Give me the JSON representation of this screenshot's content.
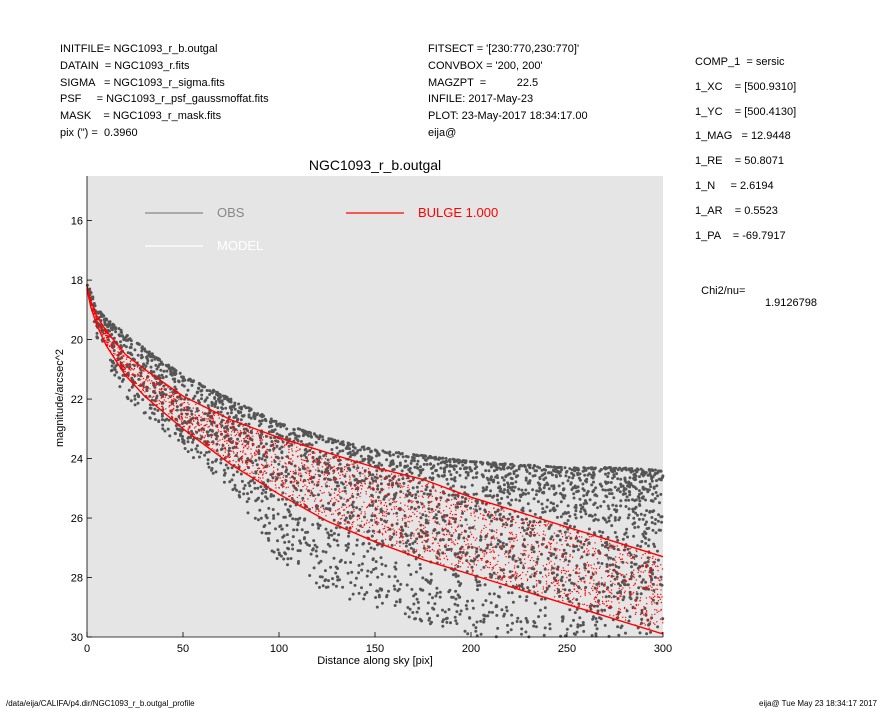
{
  "header_left": [
    "INITFILE= NGC1093_r_b.outgal",
    "DATAIN  = NGC1093_r.fits",
    "SIGMA   = NGC1093_r_sigma.fits",
    "PSF     = NGC1093_r_psf_gaussmoffat.fits",
    "MASK    = NGC1093_r_mask.fits",
    "pix (\") =  0.3960"
  ],
  "header_mid": [
    "FITSECT = '[230:770,230:770]'",
    "CONVBOX = '200, 200'",
    "MAGZPT  =          22.5",
    "INFILE: 2017-May-23",
    "PLOT: 23-May-2017 18:34:17.00",
    "eija@"
  ],
  "header_right": [
    "COMP_1  = sersic",
    "1_XC    = [500.9310]",
    "1_YC    = [500.4130]",
    "1_MAG   = 12.9448",
    "1_RE    = 50.8071",
    "1_N     = 2.6194",
    "1_AR    = 0.5523",
    "1_PA    = -69.7917"
  ],
  "chi2": {
    "label": "Chi2/nu=",
    "value": "1.9126798"
  },
  "footer": {
    "left": "/data/eija/CALIFA/p4.dir/NGC1093_r_b.outgal_profile",
    "right": "eija@  Tue May 23 18:34:17 2017"
  },
  "colors": {
    "obs": "#555555",
    "model": "#ffffff",
    "bulge": "#ff0000",
    "plot_bg": "#e5e5e5",
    "obs_legend": "#888888"
  },
  "chart_data": {
    "type": "scatter",
    "title": "NGC1093_r_b.outgal",
    "xlabel": "Distance along sky [pix]",
    "ylabel": "magnitude/arcsec^2",
    "xlim": [
      0,
      300
    ],
    "ylim": [
      30.0,
      14.5
    ],
    "y_inverted": true,
    "xticks": [
      0,
      50,
      100,
      150,
      200,
      250,
      300
    ],
    "yticks": [
      16,
      18,
      20,
      22,
      24,
      26,
      28,
      30
    ],
    "grid": false,
    "legend": [
      {
        "name": "OBS",
        "color": "#888888",
        "style": "line"
      },
      {
        "name": "MODEL",
        "color": "#ffffff",
        "style": "line"
      },
      {
        "name": "BULGE  1.000",
        "color": "#ff0000",
        "style": "line"
      }
    ],
    "series": [
      {
        "name": "OBS",
        "style": "points",
        "color": "#555555",
        "envelope": {
          "x": [
            0,
            2,
            5,
            10,
            20,
            30,
            50,
            75,
            100,
            125,
            150,
            175,
            200,
            225,
            250,
            275,
            300
          ],
          "y_min": [
            18.0,
            18.4,
            18.9,
            19.3,
            19.8,
            20.3,
            21.2,
            22.0,
            22.8,
            23.3,
            23.7,
            23.9,
            24.1,
            24.2,
            24.3,
            24.3,
            24.4
          ],
          "y_max": [
            18.5,
            19.2,
            20.0,
            20.8,
            21.9,
            22.6,
            23.7,
            25.0,
            27.5,
            28.5,
            29.0,
            29.5,
            30.0,
            30.0,
            30.0,
            30.0,
            30.0
          ]
        }
      },
      {
        "name": "BULGE  1.000",
        "style": "points",
        "color": "#ff0000",
        "envelope": {
          "x": [
            0,
            2,
            5,
            10,
            20,
            30,
            50,
            75,
            100,
            125,
            150,
            175,
            200,
            225,
            250,
            275,
            300
          ],
          "y_min": [
            18.2,
            18.7,
            19.2,
            19.7,
            20.5,
            21.0,
            21.9,
            22.7,
            23.3,
            23.8,
            24.3,
            24.7,
            25.3,
            25.8,
            26.3,
            26.8,
            27.3
          ],
          "y_max": [
            18.3,
            18.9,
            19.5,
            20.2,
            21.2,
            21.9,
            23.0,
            24.2,
            25.2,
            26.1,
            26.8,
            27.4,
            27.9,
            28.4,
            28.9,
            29.4,
            29.9
          ]
        }
      }
    ]
  }
}
